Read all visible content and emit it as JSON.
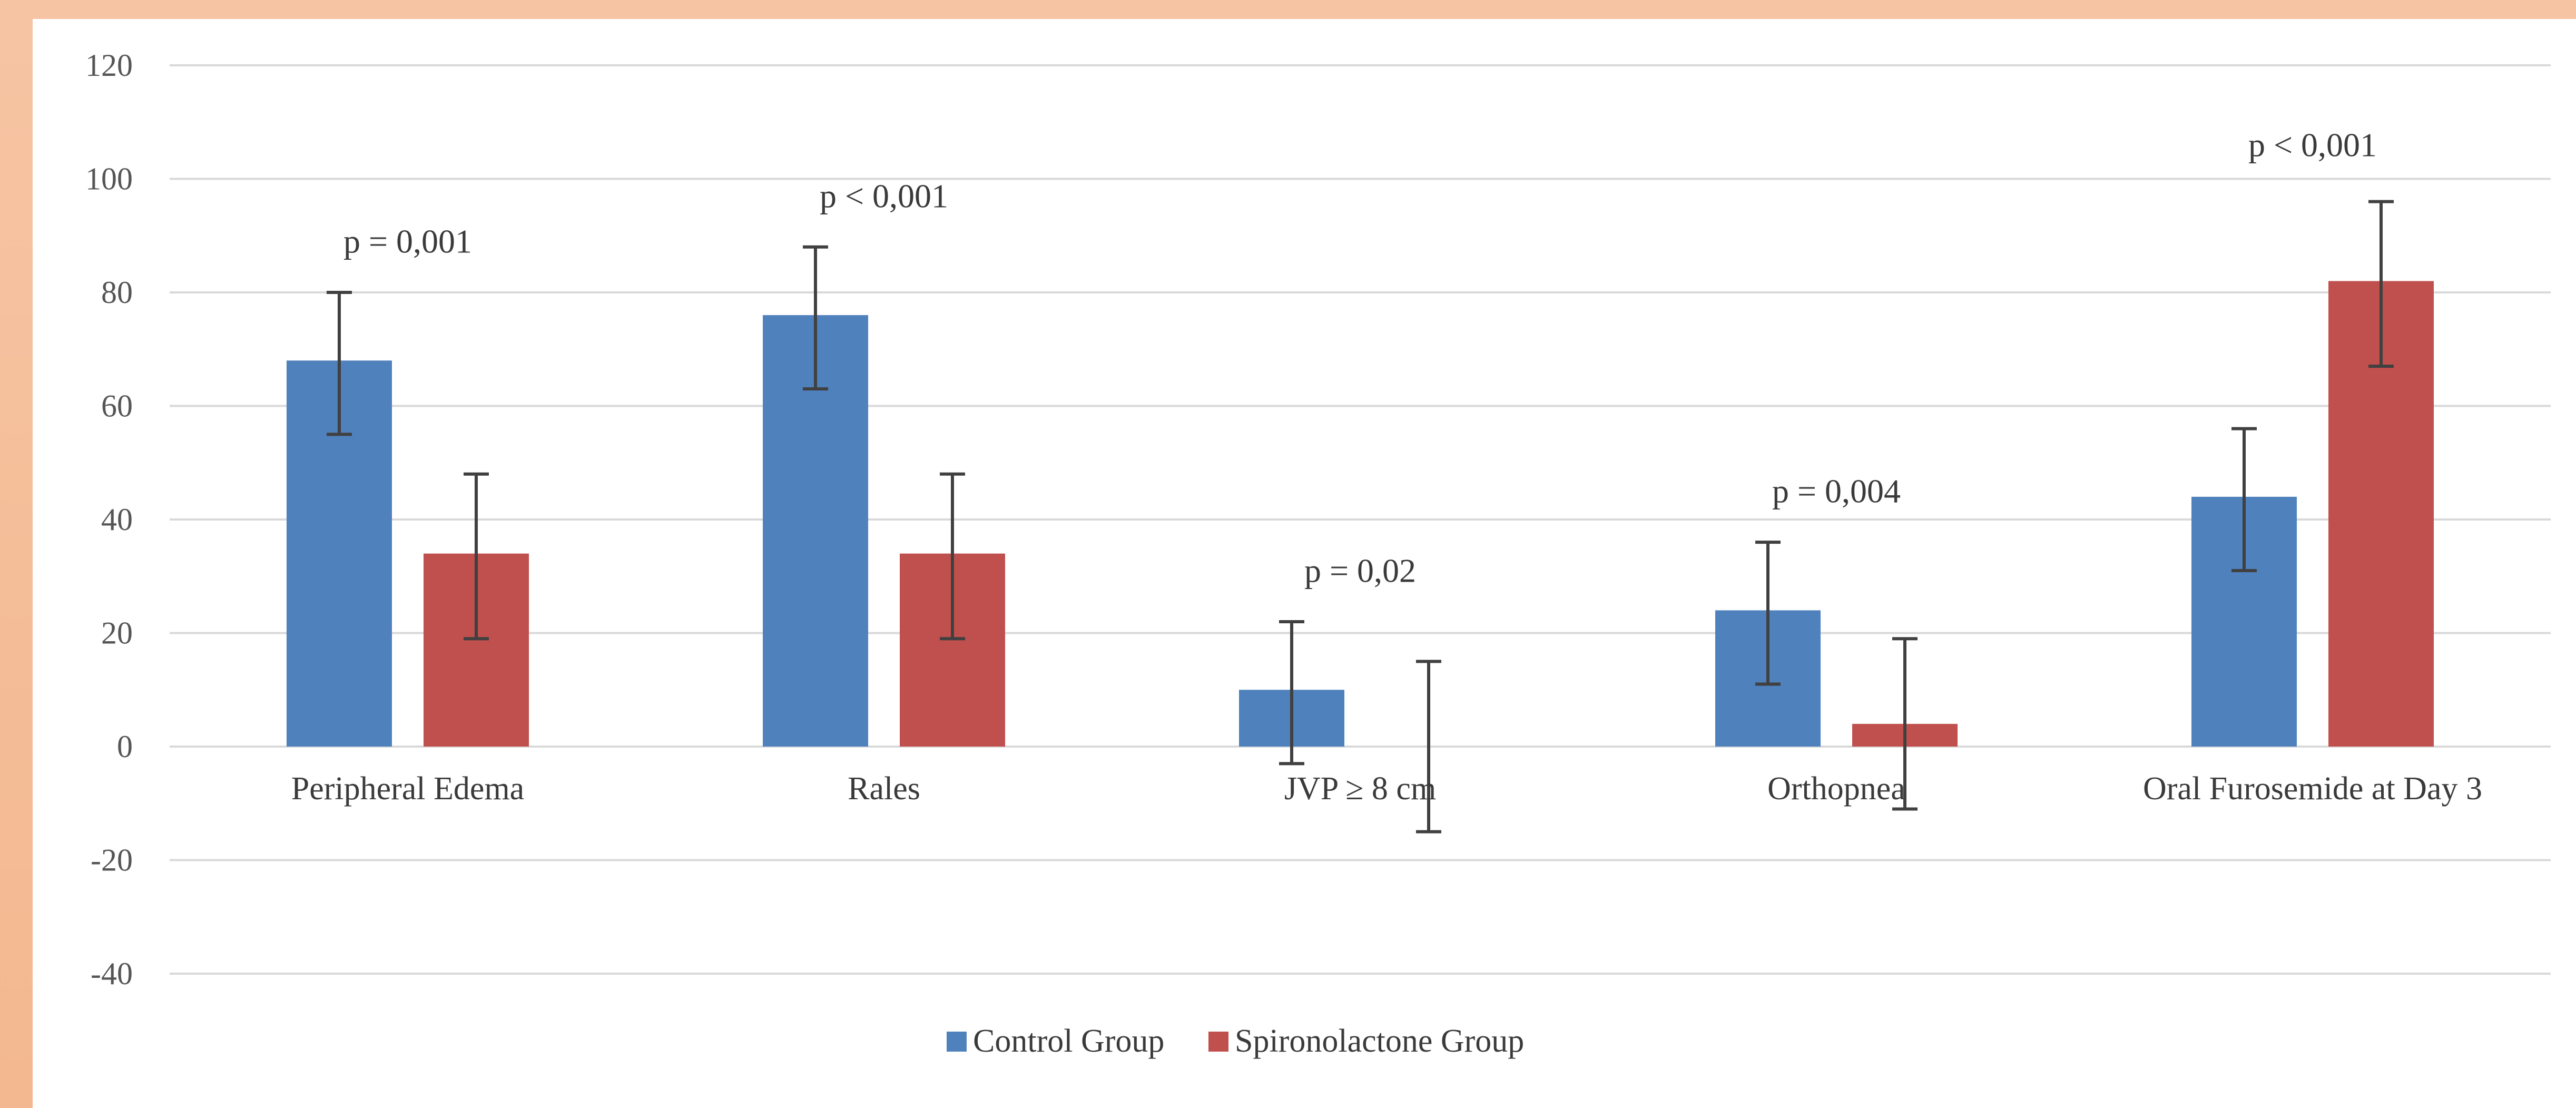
{
  "chart_data": {
    "type": "bar",
    "title": "",
    "xlabel": "",
    "ylabel": "",
    "ylim": [
      -40,
      120
    ],
    "yticks": [
      120,
      100,
      80,
      60,
      40,
      20,
      0,
      -20,
      -40
    ],
    "grid": true,
    "legend_position": "bottom",
    "categories": [
      "Peripheral Edema",
      "Rales",
      "JVP ≥ 8 cm",
      "Orthopnea",
      "Oral Furosemide at Day 3"
    ],
    "series": [
      {
        "name": "Control Group",
        "color": "#4f81bd",
        "values": [
          68,
          76,
          10,
          24,
          44
        ],
        "error_low": [
          55,
          63,
          -3,
          11,
          31
        ],
        "error_high": [
          80,
          88,
          22,
          36,
          56
        ]
      },
      {
        "name": "Spironolactone Group",
        "color": "#c0504d",
        "values": [
          34,
          34,
          0,
          4,
          82
        ],
        "error_low": [
          19,
          19,
          -15,
          -11,
          67
        ],
        "error_high": [
          48,
          48,
          15,
          19,
          96
        ]
      }
    ],
    "annotations": [
      {
        "category": "Peripheral Edema",
        "text": "p = 0,001",
        "y": 87
      },
      {
        "category": "Rales",
        "text": "p < 0,001",
        "y": 95
      },
      {
        "category": "JVP ≥ 8 cm",
        "text": "p = 0,02",
        "y": 29
      },
      {
        "category": "Orthopnea",
        "text": "p = 0,004",
        "y": 43
      },
      {
        "category": "Oral Furosemide at Day 3",
        "text": "p < 0,001",
        "y": 104
      }
    ]
  }
}
